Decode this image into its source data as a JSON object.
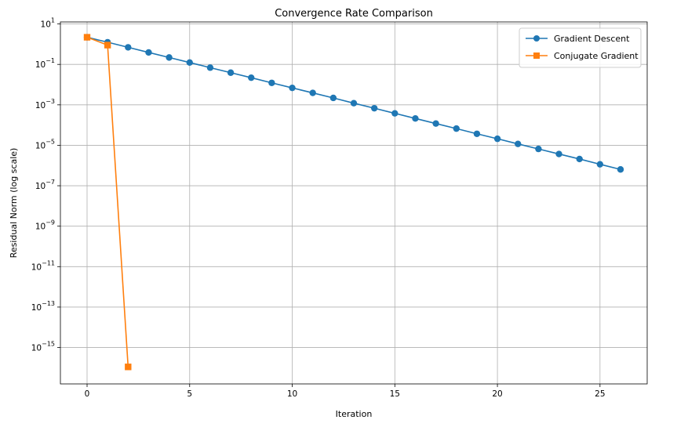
{
  "chart_data": {
    "type": "line",
    "title": "Convergence Rate Comparison",
    "xlabel": "Iteration",
    "ylabel": "Residual Norm (log scale)",
    "yscale": "log",
    "xlim": [
      -1.3,
      27.3
    ],
    "ylim_exp": [
      -16.8,
      1.1
    ],
    "x_ticks": [
      0,
      5,
      10,
      15,
      20,
      25
    ],
    "y_ticks": [
      {
        "exp": 1,
        "base": "10",
        "power": "1"
      },
      {
        "exp": -1,
        "base": "10",
        "power": "−1"
      },
      {
        "exp": -3,
        "base": "10",
        "power": "−3"
      },
      {
        "exp": -5,
        "base": "10",
        "power": "−5"
      },
      {
        "exp": -7,
        "base": "10",
        "power": "−7"
      },
      {
        "exp": -9,
        "base": "10",
        "power": "−9"
      },
      {
        "exp": -11,
        "base": "10",
        "power": "−11"
      },
      {
        "exp": -13,
        "base": "10",
        "power": "−13"
      },
      {
        "exp": -15,
        "base": "10",
        "power": "−15"
      }
    ],
    "grid": true,
    "legend_position": "top-right",
    "series": [
      {
        "name": "Gradient Descent",
        "color": "#1f77b4",
        "marker": "circle",
        "x": [
          0,
          1,
          2,
          3,
          4,
          5,
          6,
          7,
          8,
          9,
          10,
          11,
          12,
          13,
          14,
          15,
          16,
          17,
          18,
          19,
          20,
          21,
          22,
          23,
          24,
          25,
          26
        ],
        "y": [
          2.2,
          1.25,
          0.7,
          0.39,
          0.22,
          0.124,
          0.069,
          0.039,
          0.022,
          0.0122,
          0.0069,
          0.0039,
          0.0022,
          0.00121,
          0.00068,
          0.00038,
          0.000212,
          0.000119,
          6.7e-05,
          3.7e-05,
          2.1e-05,
          1.17e-05,
          6.6e-06,
          3.7e-06,
          2.1e-06,
          1.15e-06,
          6.4e-07
        ]
      },
      {
        "name": "Conjugate Gradient",
        "color": "#ff7f0e",
        "marker": "square",
        "x": [
          0,
          1,
          2
        ],
        "y": [
          2.2,
          0.9,
          1.1e-16
        ]
      }
    ]
  }
}
